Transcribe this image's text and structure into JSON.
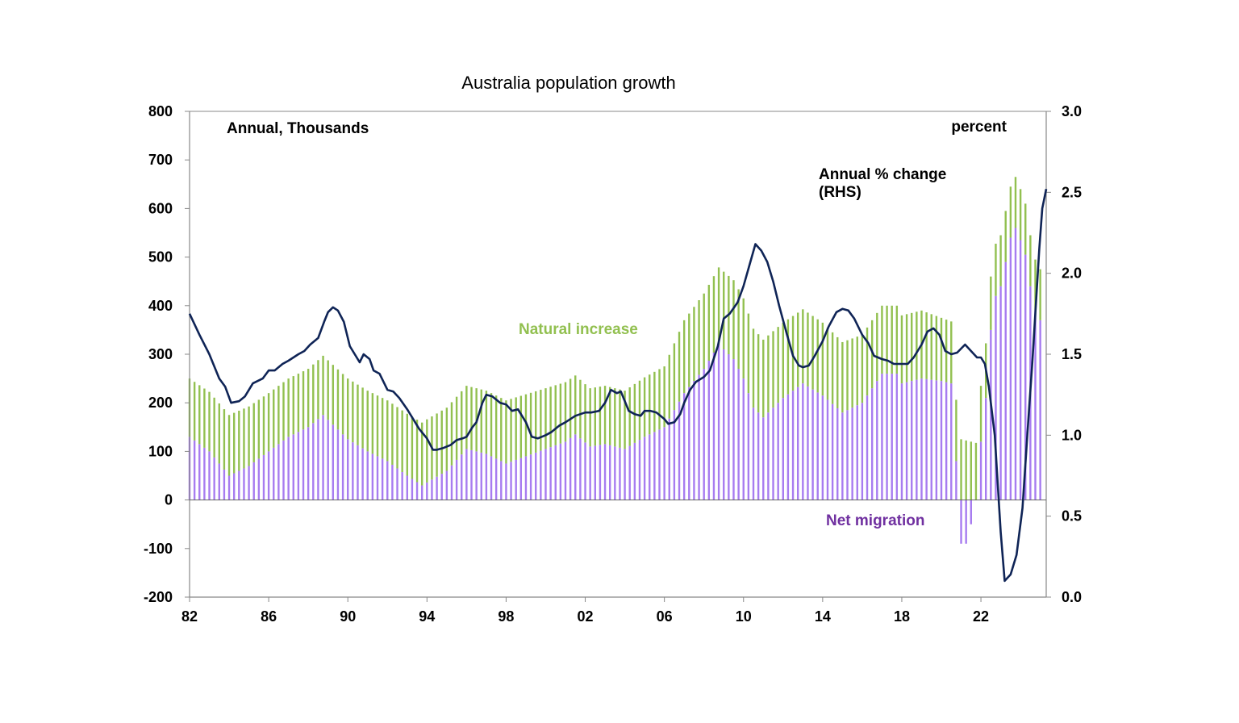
{
  "chart_data": {
    "type": "bar",
    "title": "Australia population growth",
    "annotations": {
      "left_units": "Annual, Thousands",
      "right_units": "percent",
      "line_label_1": "Annual % change",
      "line_label_2": "(RHS)",
      "natural_label": "Natural increase",
      "migration_label": "Net migration"
    },
    "x_tick_labels": [
      "82",
      "86",
      "90",
      "94",
      "98",
      "02",
      "06",
      "10",
      "14",
      "18",
      "22"
    ],
    "x_tick_years": [
      1982,
      1986,
      1990,
      1994,
      1998,
      2002,
      2006,
      2010,
      2014,
      2018,
      2022
    ],
    "x_range": [
      1982,
      2025.3
    ],
    "y_left": {
      "ticks": [
        "800",
        "700",
        "600",
        "500",
        "400",
        "300",
        "200",
        "100",
        "0",
        "-100",
        "-200"
      ],
      "range": [
        -200,
        800
      ]
    },
    "y_right": {
      "ticks": [
        "3.0",
        "2.5",
        "2.0",
        "1.5",
        "1.0",
        "0.5",
        "0.0"
      ],
      "range": [
        0.0,
        3.0
      ]
    },
    "colors": {
      "natural": "#92c050",
      "migration": "#a77cf0",
      "line": "#0f2456",
      "migration_text": "#7030a0"
    },
    "series": [
      {
        "name": "Net migration",
        "axis": "left",
        "points": [
          [
            1982.0,
            130
          ],
          [
            1983.0,
            100
          ],
          [
            1984.0,
            50
          ],
          [
            1985.0,
            70
          ],
          [
            1986.0,
            100
          ],
          [
            1987.0,
            130
          ],
          [
            1988.0,
            150
          ],
          [
            1988.75,
            175
          ],
          [
            1990.0,
            125
          ],
          [
            1991.0,
            100
          ],
          [
            1992.0,
            80
          ],
          [
            1993.0,
            50
          ],
          [
            1993.75,
            30
          ],
          [
            1995.0,
            60
          ],
          [
            1996.0,
            105
          ],
          [
            1997.0,
            95
          ],
          [
            1998.0,
            75
          ],
          [
            1999.0,
            90
          ],
          [
            2000.0,
            105
          ],
          [
            2001.0,
            120
          ],
          [
            2001.5,
            135
          ],
          [
            2002.25,
            110
          ],
          [
            2003.0,
            115
          ],
          [
            2004.0,
            105
          ],
          [
            2005.0,
            130
          ],
          [
            2006.0,
            150
          ],
          [
            2007.0,
            220
          ],
          [
            2008.0,
            270
          ],
          [
            2008.75,
            320
          ],
          [
            2009.5,
            290
          ],
          [
            2010.0,
            250
          ],
          [
            2010.5,
            190
          ],
          [
            2011.0,
            170
          ],
          [
            2012.0,
            210
          ],
          [
            2013.0,
            240
          ],
          [
            2014.0,
            215
          ],
          [
            2015.0,
            180
          ],
          [
            2016.0,
            200
          ],
          [
            2017.0,
            260
          ],
          [
            2017.75,
            260
          ],
          [
            2018.0,
            240
          ],
          [
            2019.0,
            250
          ],
          [
            2020.0,
            245
          ],
          [
            2020.5,
            240
          ],
          [
            2020.75,
            80
          ],
          [
            2021.0,
            -90
          ],
          [
            2021.25,
            -90
          ],
          [
            2021.5,
            -50
          ],
          [
            2021.75,
            0
          ],
          [
            2022.0,
            120
          ],
          [
            2022.25,
            210
          ],
          [
            2022.5,
            350
          ],
          [
            2022.75,
            420
          ],
          [
            2023.0,
            440
          ],
          [
            2023.5,
            540
          ],
          [
            2023.75,
            560
          ],
          [
            2024.0,
            535
          ],
          [
            2024.25,
            505
          ],
          [
            2024.5,
            440
          ],
          [
            2024.75,
            390
          ],
          [
            2025.0,
            370
          ]
        ]
      },
      {
        "name": "Natural increase",
        "axis": "left",
        "points": [
          [
            1982.0,
            120
          ],
          [
            1984.0,
            125
          ],
          [
            1986.0,
            120
          ],
          [
            1988.0,
            120
          ],
          [
            1990.0,
            125
          ],
          [
            1992.0,
            125
          ],
          [
            1994.0,
            130
          ],
          [
            1996.0,
            130
          ],
          [
            1998.0,
            130
          ],
          [
            2000.0,
            125
          ],
          [
            2002.0,
            120
          ],
          [
            2004.0,
            120
          ],
          [
            2006.0,
            125
          ],
          [
            2007.0,
            150
          ],
          [
            2008.0,
            155
          ],
          [
            2010.0,
            165
          ],
          [
            2012.0,
            155
          ],
          [
            2014.0,
            150
          ],
          [
            2016.0,
            140
          ],
          [
            2018.0,
            140
          ],
          [
            2019.0,
            140
          ],
          [
            2020.0,
            130
          ],
          [
            2021.0,
            125
          ],
          [
            2022.0,
            115
          ],
          [
            2023.0,
            105
          ],
          [
            2024.0,
            105
          ],
          [
            2025.0,
            105
          ]
        ]
      },
      {
        "name": "Annual % change (RHS)",
        "axis": "right",
        "points": [
          [
            1982.0,
            1.75
          ],
          [
            1982.5,
            1.62
          ],
          [
            1983.0,
            1.5
          ],
          [
            1983.5,
            1.35
          ],
          [
            1983.8,
            1.3
          ],
          [
            1984.1,
            1.2
          ],
          [
            1984.5,
            1.21
          ],
          [
            1984.8,
            1.24
          ],
          [
            1985.2,
            1.32
          ],
          [
            1985.7,
            1.35
          ],
          [
            1986.0,
            1.4
          ],
          [
            1986.3,
            1.4
          ],
          [
            1986.7,
            1.44
          ],
          [
            1987.0,
            1.46
          ],
          [
            1987.5,
            1.5
          ],
          [
            1987.8,
            1.52
          ],
          [
            1988.1,
            1.56
          ],
          [
            1988.5,
            1.6
          ],
          [
            1988.8,
            1.7
          ],
          [
            1989.0,
            1.76
          ],
          [
            1989.25,
            1.79
          ],
          [
            1989.5,
            1.77
          ],
          [
            1989.8,
            1.7
          ],
          [
            1990.1,
            1.55
          ],
          [
            1990.6,
            1.45
          ],
          [
            1990.8,
            1.5
          ],
          [
            1991.1,
            1.47
          ],
          [
            1991.3,
            1.4
          ],
          [
            1991.6,
            1.38
          ],
          [
            1992.0,
            1.28
          ],
          [
            1992.3,
            1.27
          ],
          [
            1992.6,
            1.23
          ],
          [
            1993.0,
            1.16
          ],
          [
            1993.3,
            1.1
          ],
          [
            1993.6,
            1.04
          ],
          [
            1994.0,
            0.98
          ],
          [
            1994.3,
            0.91
          ],
          [
            1994.5,
            0.91
          ],
          [
            1994.8,
            0.92
          ],
          [
            1995.2,
            0.94
          ],
          [
            1995.5,
            0.97
          ],
          [
            1995.8,
            0.98
          ],
          [
            1996.0,
            0.99
          ],
          [
            1996.3,
            1.05
          ],
          [
            1996.5,
            1.08
          ],
          [
            1996.8,
            1.2
          ],
          [
            1997.0,
            1.25
          ],
          [
            1997.3,
            1.24
          ],
          [
            1997.7,
            1.2
          ],
          [
            1998.0,
            1.19
          ],
          [
            1998.3,
            1.15
          ],
          [
            1998.6,
            1.16
          ],
          [
            1999.0,
            1.08
          ],
          [
            1999.3,
            0.99
          ],
          [
            1999.6,
            0.98
          ],
          [
            2000.0,
            1.0
          ],
          [
            2000.3,
            1.02
          ],
          [
            2000.7,
            1.06
          ],
          [
            2001.0,
            1.08
          ],
          [
            2001.5,
            1.12
          ],
          [
            2002.0,
            1.14
          ],
          [
            2002.3,
            1.14
          ],
          [
            2002.7,
            1.15
          ],
          [
            2003.0,
            1.2
          ],
          [
            2003.3,
            1.28
          ],
          [
            2003.6,
            1.26
          ],
          [
            2003.8,
            1.27
          ],
          [
            2004.2,
            1.15
          ],
          [
            2004.5,
            1.13
          ],
          [
            2004.8,
            1.12
          ],
          [
            2005.0,
            1.15
          ],
          [
            2005.3,
            1.15
          ],
          [
            2005.6,
            1.14
          ],
          [
            2006.0,
            1.1
          ],
          [
            2006.2,
            1.07
          ],
          [
            2006.5,
            1.08
          ],
          [
            2006.8,
            1.13
          ],
          [
            2007.0,
            1.2
          ],
          [
            2007.3,
            1.28
          ],
          [
            2007.6,
            1.33
          ],
          [
            2008.0,
            1.36
          ],
          [
            2008.3,
            1.4
          ],
          [
            2008.7,
            1.55
          ],
          [
            2009.0,
            1.72
          ],
          [
            2009.3,
            1.75
          ],
          [
            2009.7,
            1.82
          ],
          [
            2010.0,
            1.92
          ],
          [
            2010.3,
            2.05
          ],
          [
            2010.6,
            2.18
          ],
          [
            2010.9,
            2.14
          ],
          [
            2011.2,
            2.07
          ],
          [
            2011.5,
            1.95
          ],
          [
            2011.8,
            1.8
          ],
          [
            2012.2,
            1.62
          ],
          [
            2012.5,
            1.49
          ],
          [
            2012.8,
            1.43
          ],
          [
            2013.0,
            1.42
          ],
          [
            2013.3,
            1.43
          ],
          [
            2013.6,
            1.49
          ],
          [
            2014.0,
            1.58
          ],
          [
            2014.3,
            1.67
          ],
          [
            2014.7,
            1.76
          ],
          [
            2015.0,
            1.78
          ],
          [
            2015.3,
            1.77
          ],
          [
            2015.6,
            1.72
          ],
          [
            2016.0,
            1.62
          ],
          [
            2016.3,
            1.57
          ],
          [
            2016.6,
            1.49
          ],
          [
            2017.0,
            1.47
          ],
          [
            2017.3,
            1.46
          ],
          [
            2017.6,
            1.44
          ],
          [
            2018.0,
            1.44
          ],
          [
            2018.3,
            1.44
          ],
          [
            2018.6,
            1.48
          ],
          [
            2019.0,
            1.56
          ],
          [
            2019.3,
            1.64
          ],
          [
            2019.6,
            1.66
          ],
          [
            2019.9,
            1.62
          ],
          [
            2020.2,
            1.52
          ],
          [
            2020.5,
            1.5
          ],
          [
            2020.8,
            1.51
          ],
          [
            2021.2,
            1.56
          ],
          [
            2021.5,
            1.52
          ],
          [
            2021.8,
            1.48
          ],
          [
            2022.0,
            1.48
          ],
          [
            2022.2,
            1.44
          ],
          [
            2022.4,
            1.3
          ],
          [
            2022.7,
            1.0
          ],
          [
            2022.9,
            0.6
          ],
          [
            2023.0,
            0.4
          ],
          [
            2023.2,
            0.1
          ],
          [
            2023.5,
            0.14
          ],
          [
            2023.8,
            0.26
          ],
          [
            2024.1,
            0.55
          ],
          [
            2024.4,
            1.1
          ],
          [
            2024.6,
            1.45
          ],
          [
            2024.8,
            1.85
          ],
          [
            2024.95,
            2.15
          ],
          [
            2025.1,
            2.4
          ],
          [
            2025.3,
            2.52
          ]
        ]
      }
    ]
  }
}
